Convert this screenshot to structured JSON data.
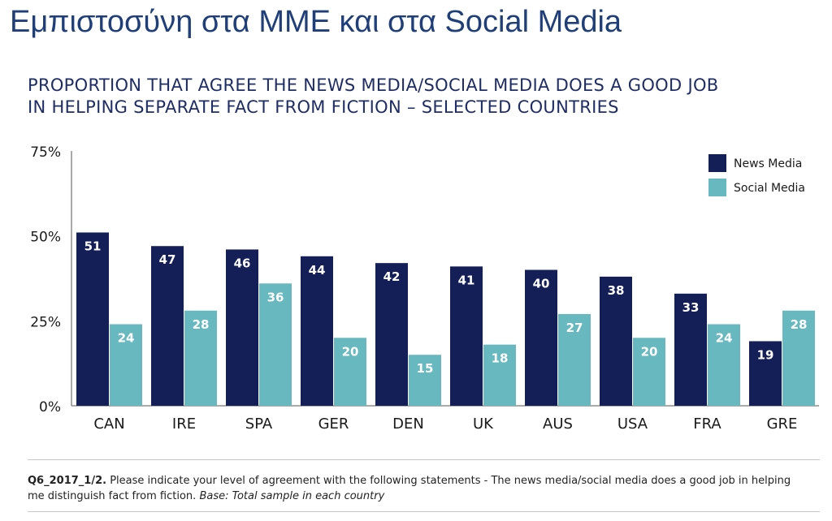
{
  "slide": {
    "title": "Εμπιστοσύνη στα ΜΜΕ και στα Social Media"
  },
  "footnote": {
    "code": "Q6_2017_1/2.",
    "text": " Please indicate your level of agreement with the following statements - The news media/social media does a good job in helping me distinguish fact from fiction. ",
    "base": "Base: Total sample in each country"
  },
  "colors": {
    "news": "#141e57",
    "social": "#67b8bf",
    "title": "#1f3f7a"
  },
  "chart_data": {
    "type": "bar",
    "title_lines": [
      "PROPORTION THAT AGREE THE NEWS MEDIA/SOCIAL MEDIA DOES A GOOD JOB",
      "IN HELPING SEPARATE FACT FROM FICTION – SELECTED COUNTRIES"
    ],
    "categories": [
      "CAN",
      "IRE",
      "SPA",
      "GER",
      "DEN",
      "UK",
      "AUS",
      "USA",
      "FRA",
      "GRE"
    ],
    "series": [
      {
        "name": "News Media",
        "values": [
          51,
          47,
          46,
          44,
          42,
          41,
          40,
          38,
          33,
          19
        ]
      },
      {
        "name": "Social Media",
        "values": [
          24,
          28,
          36,
          20,
          15,
          18,
          27,
          20,
          24,
          28
        ]
      }
    ],
    "yticks": [
      "0%",
      "25%",
      "50%",
      "75%"
    ],
    "ylim": [
      0,
      75
    ],
    "legend_position": "top-right",
    "grid": false
  }
}
